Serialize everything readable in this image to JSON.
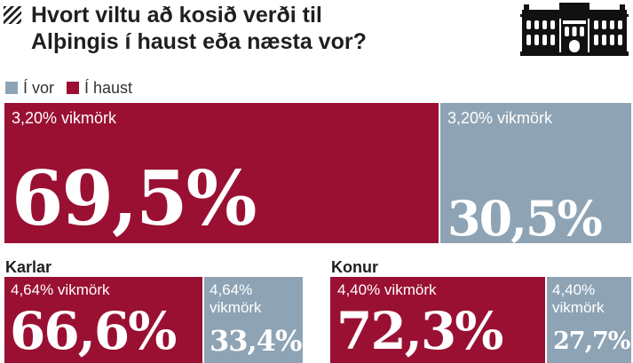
{
  "header": {
    "title_line1": "Hvort viltu að kosið verði til",
    "title_line2": "Alþingis í haust eða næsta vor?"
  },
  "icons": {
    "hatch": "diagonal-hatch-icon",
    "building": "parliament-building-icon"
  },
  "colors": {
    "haust": "#9a1033",
    "vor": "#8ea4b5",
    "text_on_block": "#ffffff"
  },
  "legend": [
    {
      "label": "Í vor",
      "color": "#8ea4b5"
    },
    {
      "label": "Í haust",
      "color": "#9a1033"
    }
  ],
  "chart_data": [
    {
      "type": "bar",
      "group": "",
      "series": [
        {
          "name": "Í haust",
          "value": 69.5,
          "label": "69,5%",
          "margin_of_error": "3,20% vikmörk"
        },
        {
          "name": "Í vor",
          "value": 30.5,
          "label": "30,5%",
          "margin_of_error": "3,20% vikmörk"
        }
      ]
    },
    {
      "type": "bar",
      "group": "Karlar",
      "series": [
        {
          "name": "Í haust",
          "value": 66.6,
          "label": "66,6%",
          "margin_of_error": "4,64% vikmörk"
        },
        {
          "name": "Í vor",
          "value": 33.4,
          "label": "33,4%",
          "margin_of_error_lines": [
            "4,64%",
            "vikmörk"
          ]
        }
      ]
    },
    {
      "type": "bar",
      "group": "Konur",
      "series": [
        {
          "name": "Í haust",
          "value": 72.3,
          "label": "72,3%",
          "margin_of_error": "4,40% vikmörk"
        },
        {
          "name": "Í vor",
          "value": 27.7,
          "label": "27,7%",
          "margin_of_error_lines": [
            "4,40%",
            "vikmörk"
          ]
        }
      ]
    }
  ]
}
